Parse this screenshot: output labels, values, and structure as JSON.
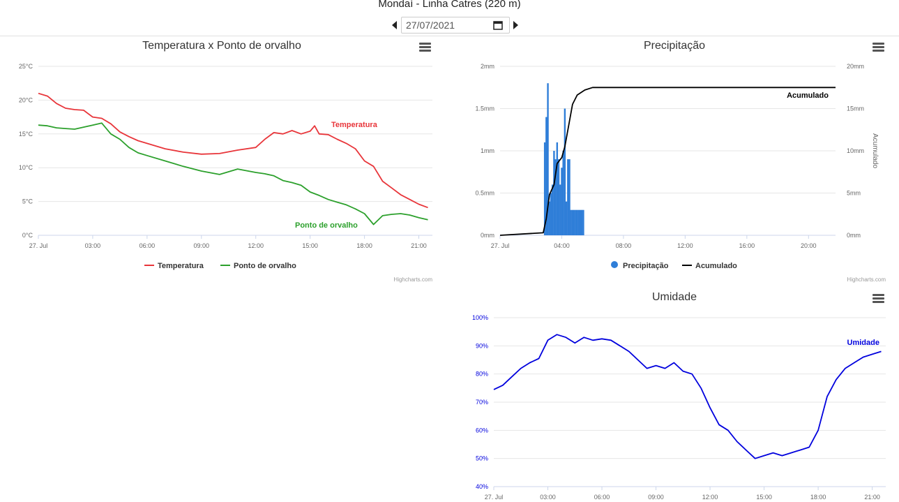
{
  "page": {
    "title": "Mondaí - Linha Catres (220 m)",
    "date_value": "27/07/2021",
    "credits": "Highcharts.com"
  },
  "icons": {
    "prev": "caret-left-icon",
    "next": "caret-right-icon",
    "calendar": "calendar-icon",
    "menu": "hamburger-menu-icon"
  },
  "colors": {
    "temperature": "#e8353a",
    "dewpoint": "#2ca02c",
    "precip": "#2f7ed8",
    "accum": "#000000",
    "humidity": "#0000dd",
    "grid": "#e6e6e6"
  },
  "chart_data": [
    {
      "type": "line",
      "title": "Temperatura x Ponto de orvalho",
      "xlabel": "",
      "ylabel": "",
      "x_ticks": [
        "27. Jul",
        "03:00",
        "06:00",
        "09:00",
        "12:00",
        "15:00",
        "18:00",
        "21:00"
      ],
      "y_ticks": [
        "0°C",
        "5°C",
        "10°C",
        "15°C",
        "20°C",
        "25°C"
      ],
      "x_unit": "hours",
      "xlim": [
        0,
        21.75
      ],
      "ylim": [
        0,
        25
      ],
      "grid": true,
      "legend_position": "bottom-center",
      "series": [
        {
          "name": "Temperatura",
          "color": "#e8353a",
          "x": [
            0,
            0.5,
            1,
            1.5,
            2,
            2.5,
            3,
            3.5,
            4,
            4.5,
            5,
            5.5,
            6,
            7,
            8,
            9,
            10,
            11,
            12,
            12.5,
            13,
            13.5,
            14,
            14.5,
            15,
            15.25,
            15.5,
            16,
            16.5,
            17,
            17.5,
            18,
            18.5,
            19,
            19.5,
            20,
            20.5,
            21,
            21.5
          ],
          "y": [
            21,
            20.6,
            19.5,
            18.8,
            18.6,
            18.5,
            17.5,
            17.3,
            16.5,
            15.3,
            14.6,
            14.0,
            13.6,
            12.8,
            12.3,
            12.0,
            12.1,
            12.6,
            13.0,
            14.2,
            15.2,
            15.0,
            15.5,
            15.0,
            15.4,
            16.2,
            15.0,
            14.9,
            14.2,
            13.6,
            12.8,
            11.0,
            10.2,
            8.0,
            7.0,
            6.0,
            5.3,
            4.6,
            4.1
          ]
        },
        {
          "name": "Ponto de orvalho",
          "color": "#2ca02c",
          "x": [
            0,
            0.5,
            1,
            1.5,
            2,
            2.5,
            3,
            3.5,
            4,
            4.5,
            5,
            5.5,
            6,
            7,
            8,
            9,
            10,
            11,
            12,
            12.5,
            13,
            13.5,
            14,
            14.5,
            15,
            15.5,
            16,
            16.5,
            17,
            17.5,
            18,
            18.5,
            19,
            19.5,
            20,
            20.5,
            21,
            21.5
          ],
          "y": [
            16.3,
            16.2,
            15.9,
            15.8,
            15.7,
            16.0,
            16.3,
            16.6,
            15.0,
            14.2,
            13.0,
            12.2,
            11.8,
            11.0,
            10.2,
            9.5,
            9.0,
            9.8,
            9.3,
            9.1,
            8.8,
            8.1,
            7.8,
            7.4,
            6.4,
            5.9,
            5.3,
            4.9,
            4.5,
            3.9,
            3.2,
            1.6,
            2.9,
            3.1,
            3.2,
            3.0,
            2.6,
            2.3
          ]
        }
      ],
      "annotations": [
        "Temperatura",
        "Ponto de orvalho"
      ]
    },
    {
      "type": "bar",
      "title": "Precipitação",
      "xlabel": "",
      "ylabel": "",
      "y2label": "Acumulado",
      "x_ticks": [
        "27. Jul",
        "04:00",
        "08:00",
        "12:00",
        "16:00",
        "20:00"
      ],
      "y_ticks": [
        "0mm",
        "0.5mm",
        "1mm",
        "1.5mm",
        "2mm"
      ],
      "y2_ticks": [
        "0mm",
        "5mm",
        "10mm",
        "15mm",
        "20mm"
      ],
      "x_unit": "hours",
      "xlim": [
        0,
        21.75
      ],
      "ylim": [
        0,
        2
      ],
      "y2lim": [
        0,
        20
      ],
      "legend_position": "bottom-center",
      "series": [
        {
          "name": "Precipitação",
          "color": "#2f7ed8",
          "type": "bar",
          "x": [
            2.9,
            3.0,
            3.1,
            3.2,
            3.3,
            3.4,
            3.5,
            3.6,
            3.7,
            3.8,
            3.9,
            4.0,
            4.1,
            4.2,
            4.3,
            4.4,
            4.5,
            4.6,
            4.7,
            4.8,
            4.9,
            5.0,
            5.1,
            5.2,
            5.3,
            5.4
          ],
          "y": [
            1.1,
            1.4,
            1.8,
            0.4,
            0.5,
            0.6,
            1.0,
            0.9,
            1.1,
            0.9,
            0.6,
            0.8,
            1.0,
            1.5,
            0.4,
            0.9,
            0.9,
            0.3,
            0.3,
            0.3,
            0.3,
            0.3,
            0.3,
            0.3,
            0.3,
            0.3
          ]
        },
        {
          "name": "Acumulado",
          "color": "#000000",
          "type": "line",
          "x": [
            0,
            2.8,
            3.0,
            3.2,
            3.5,
            3.7,
            4.0,
            4.2,
            4.5,
            4.7,
            5.0,
            5.5,
            6.0,
            21.75
          ],
          "y": [
            0,
            0.3,
            2.0,
            4.8,
            6.0,
            8.5,
            9.2,
            10.5,
            13.5,
            15.5,
            16.6,
            17.2,
            17.5,
            17.5
          ]
        }
      ],
      "annotations": [
        "Acumulado"
      ]
    },
    {
      "type": "line",
      "title": "Umidade",
      "xlabel": "",
      "ylabel": "",
      "x_ticks": [
        "27. Jul",
        "03:00",
        "06:00",
        "09:00",
        "12:00",
        "15:00",
        "18:00",
        "21:00"
      ],
      "y_ticks": [
        "40%",
        "50%",
        "60%",
        "70%",
        "80%",
        "90%",
        "100%"
      ],
      "x_unit": "hours",
      "xlim": [
        0,
        21.75
      ],
      "ylim": [
        40,
        100
      ],
      "grid": true,
      "series": [
        {
          "name": "Umidade",
          "color": "#0000dd",
          "x": [
            0,
            0.5,
            1,
            1.5,
            2,
            2.5,
            3,
            3.5,
            4,
            4.5,
            5,
            5.5,
            6,
            6.5,
            7,
            7.5,
            8,
            8.5,
            9,
            9.5,
            10,
            10.5,
            11,
            11.5,
            12,
            12.5,
            13,
            13.5,
            14,
            14.5,
            15,
            15.5,
            16,
            16.5,
            17,
            17.5,
            18,
            18.5,
            19,
            19.5,
            20,
            20.5,
            21,
            21.5
          ],
          "y": [
            74.5,
            76,
            79,
            82,
            84,
            85.5,
            92,
            94,
            93,
            91,
            93,
            92,
            92.5,
            92,
            90,
            88,
            85,
            82,
            83,
            82,
            84,
            81,
            80,
            75,
            68,
            62,
            60,
            56,
            53,
            50,
            51,
            52,
            51,
            52,
            53,
            54,
            60,
            72,
            78,
            82,
            84,
            86,
            87,
            88
          ]
        }
      ],
      "annotations": [
        "Umidade"
      ]
    }
  ]
}
